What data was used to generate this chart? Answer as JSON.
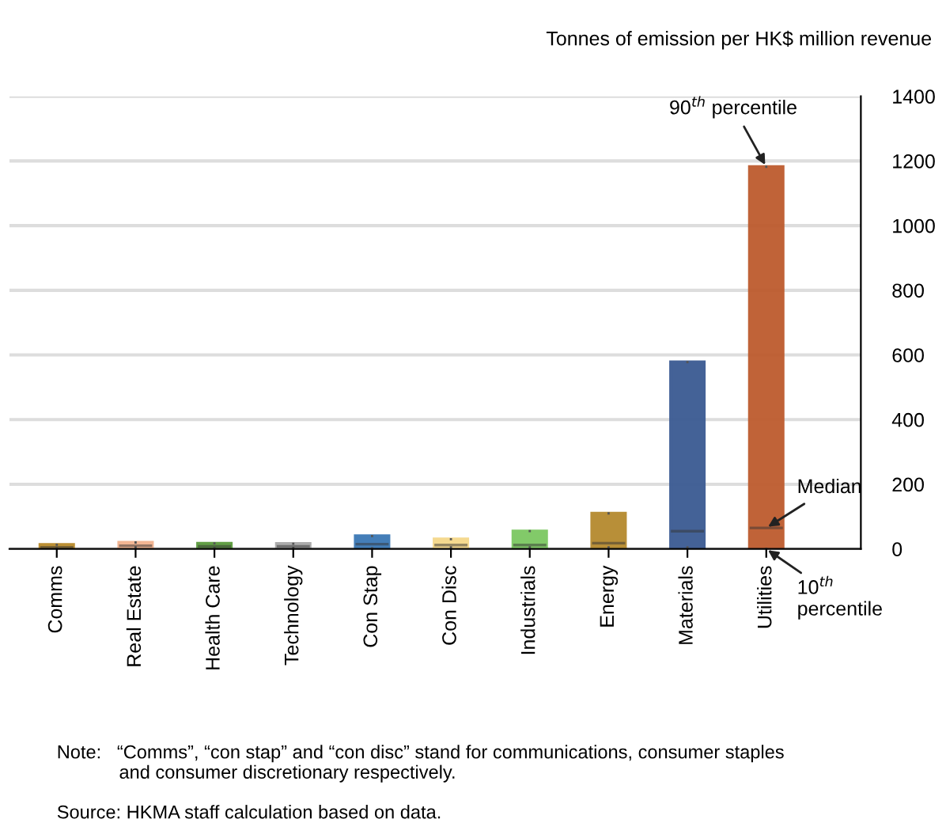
{
  "chart_data": {
    "type": "box",
    "ylabel": "Tonnes of emission per HK$ million revenue",
    "categories": [
      "Comms",
      "Real Estate",
      "Health Care",
      "Technology",
      "Con Stap",
      "Con Disc",
      "Industrials",
      "Energy",
      "Materials",
      "Utilities"
    ],
    "boxes": [
      {
        "low": 2,
        "q1": 2,
        "median": 5,
        "q3": 13,
        "high": 13
      },
      {
        "low": 5,
        "q1": 5,
        "median": 10,
        "q3": 20,
        "high": 20
      },
      {
        "low": 3,
        "q1": 3,
        "median": 8,
        "q3": 17,
        "high": 17
      },
      {
        "low": 3,
        "q1": 3,
        "median": 8,
        "q3": 16,
        "high": 16
      },
      {
        "low": 2,
        "q1": 2,
        "median": 15,
        "q3": 40,
        "high": 40
      },
      {
        "low": 5,
        "q1": 5,
        "median": 12,
        "q3": 30,
        "high": 30
      },
      {
        "low": 5,
        "q1": 5,
        "median": 12,
        "q3": 55,
        "high": 55
      },
      {
        "low": 5,
        "q1": 5,
        "median": 18,
        "q3": 110,
        "high": 110
      },
      {
        "low": 5,
        "q1": 5,
        "median": 55,
        "q3": 578,
        "high": 578
      },
      {
        "low": 0,
        "q1": 0,
        "median": 65,
        "q3": 1182,
        "high": 1182
      }
    ],
    "colors": [
      "#b8892a",
      "#f2b28e",
      "#5a9a3c",
      "#a8a8a8",
      "#3a78b5",
      "#f5d78a",
      "#7cc861",
      "#b58a2e",
      "#3a5a92",
      "#bd5b2e"
    ],
    "ylim": [
      0,
      1400
    ],
    "yticks": [
      0,
      200,
      400,
      600,
      800,
      1000,
      1200,
      1400
    ],
    "grid": "y",
    "legend": false,
    "annotations": [
      {
        "text": "90$^{th}$ percentile",
        "x": "Utilities",
        "y": 1182
      },
      {
        "text": "Median",
        "x": "Utilities",
        "y": 65
      },
      {
        "text": "10$^{th}$\npercentile",
        "x": "Utilities",
        "y": 0
      },
      "Note:   “Comms”, “con stap” and “con disc” stand for communications, consumer staples\n            and consumer discretionary respectively.",
      "Source: HKMA staff calculation based on data."
    ]
  }
}
